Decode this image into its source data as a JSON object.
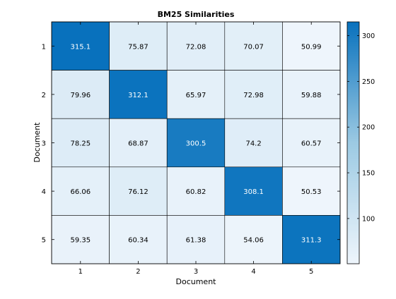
{
  "chart_data": {
    "type": "heatmap",
    "title": "BM25 Similarities",
    "xlabel": "Document",
    "ylabel": "Document",
    "x_categories": [
      "1",
      "2",
      "3",
      "4",
      "5"
    ],
    "y_categories": [
      "1",
      "2",
      "3",
      "4",
      "5"
    ],
    "values": [
      [
        315.1,
        75.87,
        72.08,
        70.07,
        50.99
      ],
      [
        79.96,
        312.1,
        65.97,
        72.98,
        59.88
      ],
      [
        78.25,
        68.87,
        300.5,
        74.2,
        60.57
      ],
      [
        66.06,
        76.12,
        60.82,
        308.1,
        50.53
      ],
      [
        59.35,
        60.34,
        61.38,
        54.06,
        311.3
      ]
    ],
    "value_labels": [
      [
        "315.1",
        "75.87",
        "72.08",
        "70.07",
        "50.99"
      ],
      [
        "79.96",
        "312.1",
        "65.97",
        "72.98",
        "59.88"
      ],
      [
        "78.25",
        "68.87",
        "300.5",
        "74.2",
        "60.57"
      ],
      [
        "66.06",
        "76.12",
        "60.82",
        "308.1",
        "50.53"
      ],
      [
        "59.35",
        "60.34",
        "61.38",
        "54.06",
        "311.3"
      ]
    ],
    "colorbar": {
      "ticks": [
        100,
        150,
        200,
        250,
        300
      ],
      "tick_labels": [
        "100",
        "150",
        "200",
        "250",
        "300"
      ],
      "range": [
        50.53,
        315.1
      ]
    },
    "colors": {
      "low": "#eef5fc",
      "mid": "#9ccae3",
      "high": "#0871bd",
      "grid": "#000000",
      "text_dark": "#000000",
      "text_light": "#ffffff"
    }
  }
}
